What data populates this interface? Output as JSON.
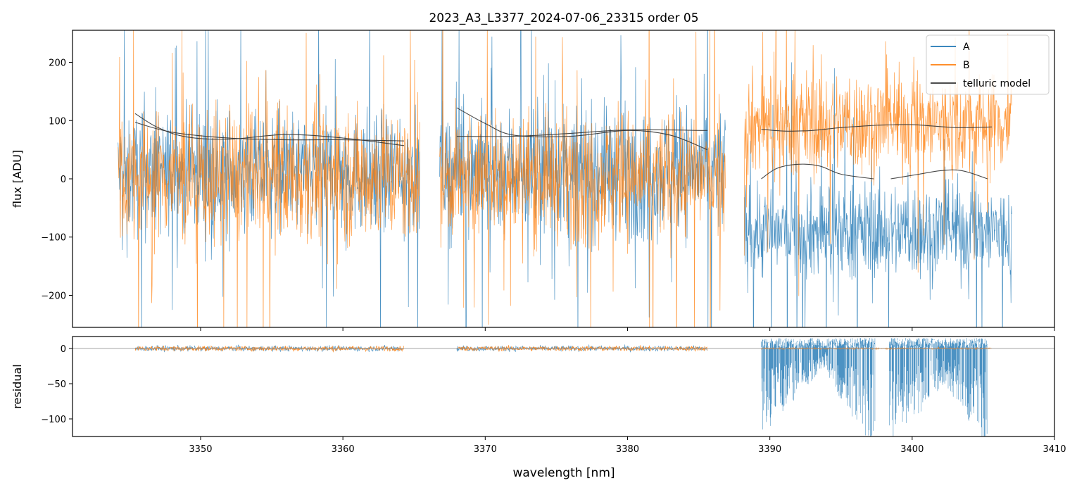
{
  "chart_data": {
    "type": "line",
    "title": "2023_A3_L3377_2024-07-06_23315  order 05",
    "xlabel": "wavelength [nm]",
    "xlim": [
      3341,
      3410
    ],
    "x_ticks": [
      3350,
      3360,
      3370,
      3380,
      3390,
      3400,
      3410
    ],
    "colors": {
      "A": "#1f77b4",
      "B": "#ff7f0e",
      "telluric": "#333333",
      "ref_line": "#888888"
    },
    "legend": {
      "placement": "top-right",
      "entries": [
        "A",
        "B",
        "telluric model"
      ]
    },
    "top_panel": {
      "ylabel": "flux [ADU]",
      "ylim": [
        -255,
        255
      ],
      "y_ticks": [
        -200,
        -100,
        0,
        100,
        200
      ],
      "segments": [
        {
          "x_range": [
            3344.2,
            3365.4
          ],
          "A": {
            "mean": 10,
            "spread": 95,
            "spike": 160
          },
          "B": {
            "mean": 5,
            "spread": 105,
            "spike": 180
          }
        },
        {
          "x_range": [
            3366.8,
            3386.9
          ],
          "A": {
            "mean": 15,
            "spread": 100,
            "spike": 170
          },
          "B": {
            "mean": 5,
            "spread": 100,
            "spike": 175
          }
        },
        {
          "x_range": [
            3388.2,
            3407.0
          ],
          "A": {
            "mean": -90,
            "spread": 75,
            "spike": 150
          },
          "B": {
            "mean": 95,
            "spread": 80,
            "spike": 130
          }
        }
      ],
      "telluric_curves": [
        {
          "x": [
            3345.4,
            3347.0,
            3349.0,
            3352.0,
            3356.0,
            3360.0,
            3364.3
          ],
          "y": [
            112,
            88,
            72,
            68,
            76,
            70,
            57
          ]
        },
        {
          "x": [
            3345.4,
            3348.0,
            3352.0,
            3356.0,
            3360.0,
            3364.3
          ],
          "y": [
            97,
            80,
            70,
            67,
            67,
            65
          ]
        },
        {
          "x": [
            3368.0,
            3370.0,
            3372.0,
            3376.0,
            3380.0,
            3383.0,
            3385.6
          ],
          "y": [
            122,
            95,
            75,
            73,
            83,
            75,
            50
          ]
        },
        {
          "x": [
            3368.0,
            3372.0,
            3376.0,
            3380.0,
            3385.6
          ],
          "y": [
            73,
            73,
            78,
            84,
            83
          ]
        },
        {
          "x": [
            3389.4,
            3391.0,
            3393.0,
            3395.0,
            3397.5
          ],
          "y": [
            85,
            82,
            83,
            88,
            92
          ]
        },
        {
          "x": [
            3397.5,
            3400.0,
            3403.0,
            3405.6
          ],
          "y": [
            92,
            93,
            88,
            89
          ]
        },
        {
          "x": [
            3389.4,
            3390.5,
            3392.0,
            3393.5,
            3395.0,
            3397.3
          ],
          "y": [
            0,
            18,
            25,
            22,
            8,
            0
          ]
        },
        {
          "x": [
            3398.5,
            3400.5,
            3402.0,
            3403.5,
            3405.3
          ],
          "y": [
            0,
            8,
            14,
            14,
            0
          ]
        }
      ]
    },
    "bottom_panel": {
      "ylabel": "residual",
      "ylim": [
        -125,
        17
      ],
      "y_ticks": [
        -100,
        -50,
        0
      ],
      "zero_line": 0,
      "segments": [
        {
          "x_range": [
            3345.4,
            3364.3
          ],
          "A_spread": 2,
          "B_spread": 3
        },
        {
          "x_range": [
            3368.0,
            3385.6
          ],
          "A_spread": 2,
          "B_spread": 3
        },
        {
          "x_range": [
            3389.4,
            3405.6
          ],
          "A_mode": "negative_dips",
          "B_spread": 1
        }
      ],
      "A_dips": [
        {
          "x_range": [
            3389.4,
            3394.0
          ],
          "depth": [
            -110,
            -20
          ]
        },
        {
          "x_range": [
            3394.0,
            3397.4
          ],
          "depth": [
            -40,
            -125
          ]
        },
        {
          "x_range": [
            3398.4,
            3402.5
          ],
          "depth": [
            -125,
            -40
          ]
        },
        {
          "x_range": [
            3402.5,
            3405.3
          ],
          "depth": [
            -50,
            -125
          ]
        }
      ]
    }
  }
}
